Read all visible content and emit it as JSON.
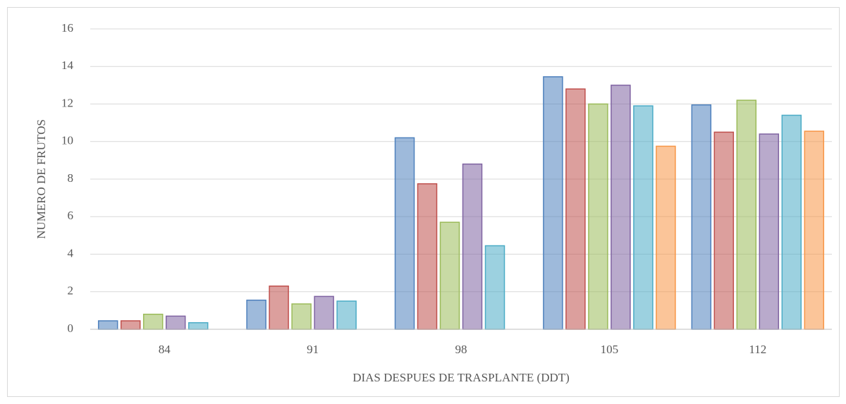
{
  "chart_data": {
    "type": "bar",
    "x_label": "DIAS DESPUES DE TRASPLANTE (DDT)",
    "y_label": "NUMERO DE FRUTOS",
    "categories": [
      "84",
      "91",
      "98",
      "105",
      "112"
    ],
    "series": [
      {
        "color": "#4f81bd",
        "values": [
          0.45,
          1.55,
          10.2,
          13.45,
          11.95
        ]
      },
      {
        "color": "#c0504d",
        "values": [
          0.45,
          2.3,
          7.75,
          12.8,
          10.5
        ]
      },
      {
        "color": "#9bbb59",
        "values": [
          0.8,
          1.35,
          5.7,
          12.0,
          12.2
        ]
      },
      {
        "color": "#8064a2",
        "values": [
          0.7,
          1.75,
          8.8,
          13.0,
          10.4
        ]
      },
      {
        "color": "#4bacc6",
        "values": [
          0.35,
          1.5,
          4.45,
          11.9,
          11.4
        ]
      },
      {
        "color": "#f79646",
        "values": [
          null,
          null,
          null,
          9.75,
          10.55
        ]
      }
    ],
    "ylim": [
      0,
      16
    ],
    "yticks": [
      0,
      2,
      4,
      6,
      8,
      10,
      12,
      14,
      16
    ],
    "grid": true
  }
}
